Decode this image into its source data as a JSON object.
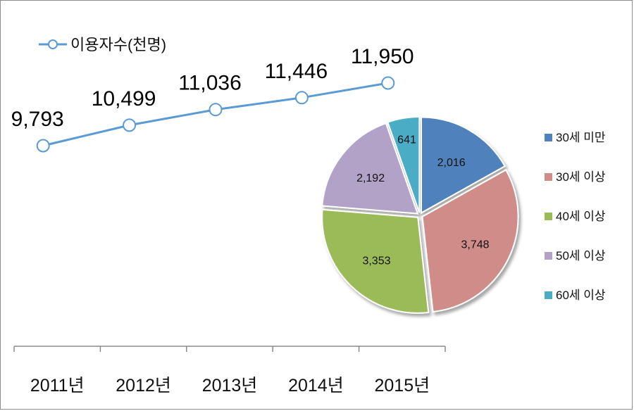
{
  "chart_data": [
    {
      "type": "line",
      "title": "",
      "categories": [
        "2011년",
        "2012년",
        "2013년",
        "2014년",
        "2015년"
      ],
      "series": [
        {
          "name": "이용자수(천명)",
          "values": [
            9793,
            10499,
            11036,
            11446,
            11950
          ]
        }
      ],
      "data_labels": [
        "9,793",
        "10,499",
        "11,036",
        "11,446",
        "11,950"
      ],
      "legend_position": "top-left",
      "grid": false,
      "line_color": "#5b9bd5"
    },
    {
      "type": "pie",
      "title": "",
      "categories": [
        "30세 미만",
        "30세 이상",
        "40세 이상",
        "50세 이상",
        "60세 이상"
      ],
      "values": [
        2016,
        3748,
        3353,
        2192,
        641
      ],
      "data_labels": [
        "2,016",
        "3,748",
        "3,353",
        "2,192",
        "641"
      ],
      "colors": [
        "#4f81bd",
        "#d08c89",
        "#9bbb59",
        "#b3a2c7",
        "#4bacc6"
      ],
      "legend_position": "right",
      "exploded": true
    }
  ]
}
